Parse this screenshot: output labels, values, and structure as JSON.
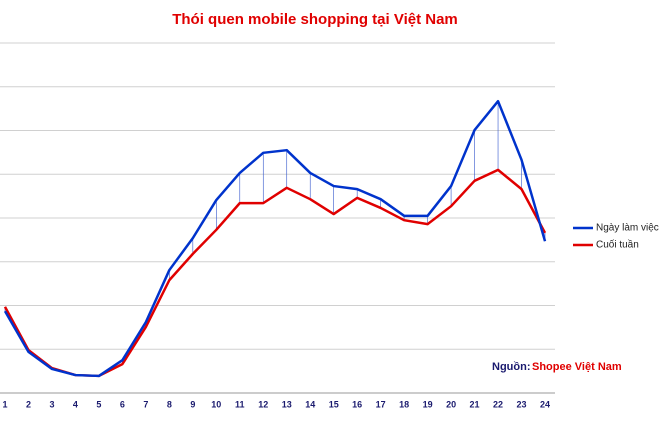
{
  "chart_data": {
    "type": "line",
    "title": "Thói quen mobile shopping tại Việt Nam",
    "categories": [
      "1",
      "2",
      "3",
      "4",
      "5",
      "6",
      "7",
      "8",
      "9",
      "10",
      "11",
      "12",
      "13",
      "14",
      "15",
      "16",
      "17",
      "18",
      "19",
      "20",
      "21",
      "22",
      "23",
      "24"
    ],
    "series": [
      {
        "name": "Ngày làm việc",
        "color": "#0033cc",
        "values": [
          1.87,
          0.94,
          0.55,
          0.41,
          0.39,
          0.75,
          1.62,
          2.81,
          3.54,
          4.41,
          5.03,
          5.49,
          5.55,
          5.03,
          4.73,
          4.66,
          4.43,
          4.05,
          4.05,
          4.73,
          6.01,
          6.67,
          5.33,
          3.47
        ]
      },
      {
        "name": "Cuối tuần",
        "color": "#e00000",
        "values": [
          1.97,
          0.98,
          0.57,
          0.41,
          0.39,
          0.66,
          1.51,
          2.58,
          3.18,
          3.73,
          4.34,
          4.34,
          4.69,
          4.43,
          4.09,
          4.46,
          4.23,
          3.95,
          3.86,
          4.27,
          4.85,
          5.1,
          4.66,
          3.66
        ]
      }
    ],
    "ylim": [
      0,
      8
    ],
    "yticks": [
      0,
      1,
      2,
      3,
      4,
      5,
      6,
      7,
      8
    ],
    "grid": true,
    "drop_lines": true,
    "source_label": "Nguồn:",
    "source": "Shopee Việt Nam"
  }
}
